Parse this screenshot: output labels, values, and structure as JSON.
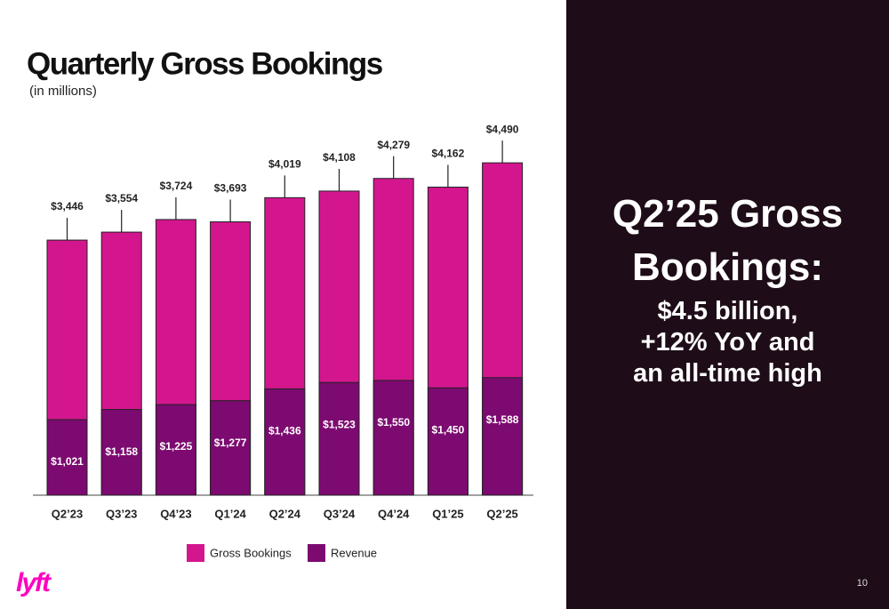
{
  "chart_data": {
    "type": "bar",
    "title": "Quarterly Gross Bookings",
    "subtitle": "(in millions)",
    "categories": [
      "Q2’23",
      "Q3’23",
      "Q4’23",
      "Q1’24",
      "Q2’24",
      "Q3’24",
      "Q4’24",
      "Q1’25",
      "Q2’25"
    ],
    "series": [
      {
        "name": "Gross Bookings",
        "color": "#d3168e",
        "values": [
          3446,
          3554,
          3724,
          3693,
          4019,
          4108,
          4279,
          4162,
          4490
        ],
        "value_labels": [
          "$3,446",
          "$3,554",
          "$3,724",
          "$3,693",
          "$4,019",
          "$4,108",
          "$4,279",
          "$4,162",
          "$4,490"
        ]
      },
      {
        "name": "Revenue",
        "color": "#7c0a70",
        "values": [
          1021,
          1158,
          1225,
          1277,
          1436,
          1523,
          1550,
          1450,
          1588
        ],
        "value_labels": [
          "$1,021",
          "$1,158",
          "$1,225",
          "$1,277",
          "$1,436",
          "$1,523",
          "$1,550",
          "$1,450",
          "$1,588"
        ]
      }
    ],
    "ylim": [
      0,
      4900
    ]
  },
  "highlight": {
    "heading": [
      "Q2’25 Gross",
      "Bookings:"
    ],
    "lines": [
      "$4.5 billion,",
      "+12% YoY and",
      "an all-time high"
    ]
  },
  "logo": "lyft",
  "page_number": "10"
}
